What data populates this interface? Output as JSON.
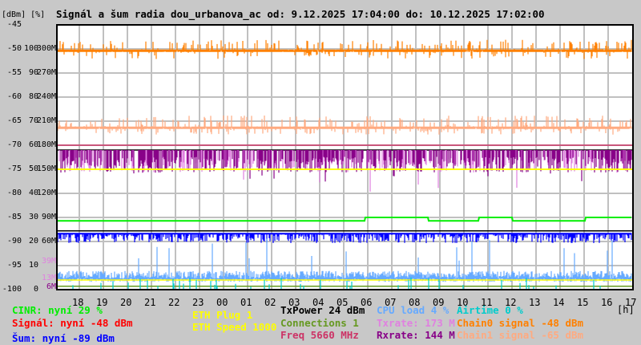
{
  "title": "Signál a šum radia dou_urbanova_ac od: 9.12.2025 17:04:00 do: 10.12.2025 17:02:00",
  "axis": {
    "units_label": "[dBm] [%]",
    "top_label": "-45",
    "x_unit": "[h]",
    "dbm_ticks": [
      "-50",
      "-55",
      "-60",
      "-65",
      "-70",
      "-75",
      "-80",
      "-85",
      "-90",
      "-95",
      "-100"
    ],
    "pct_ticks": [
      "100",
      "90",
      "80",
      "70",
      "60",
      "50",
      "40",
      "30",
      "20",
      "10",
      "0"
    ],
    "rate_ticks": [
      "300M",
      "270M",
      "240M",
      "210M",
      "180M",
      "150M",
      "120M",
      "90M",
      "60M"
    ],
    "extra_ticks": [
      {
        "text": "39M",
        "color": "#e080e0",
        "dbm": -94.2
      },
      {
        "text": "13M",
        "color": "#e080e0",
        "dbm": -98.2
      },
      {
        "text": "6M",
        "color": "#880088",
        "dbm": -99.3
      }
    ],
    "hours": [
      "18",
      "19",
      "20",
      "21",
      "22",
      "23",
      "00",
      "01",
      "02",
      "03",
      "04",
      "05",
      "06",
      "07",
      "08",
      "09",
      "10",
      "11",
      "12",
      "13",
      "14",
      "15",
      "16",
      "17"
    ]
  },
  "legend": [
    {
      "id": "cinr",
      "text": "CINR: nyní 29 %",
      "color": "#00ee00"
    },
    {
      "id": "signal",
      "text": "Signál: nyní -48 dBm",
      "color": "#ff0000"
    },
    {
      "id": "noise",
      "text": "Šum: nyní -89 dBm",
      "color": "#0000ff"
    },
    {
      "id": "eth-plug",
      "text": "ETH Plug 1",
      "color": "#ffff00"
    },
    {
      "id": "eth-speed",
      "text": "ETH Speed 1000",
      "color": "#ffff00"
    },
    {
      "id": "txpower",
      "text": "TxPower 24 dBm",
      "color": "#000000"
    },
    {
      "id": "connections",
      "text": "Connections 1",
      "color": "#669922"
    },
    {
      "id": "freq",
      "text": "Freq 5660 MHz",
      "color": "#cc3366"
    },
    {
      "id": "cpu",
      "text": "CPU load 4 %",
      "color": "#66aaff"
    },
    {
      "id": "txrate",
      "text": "Txrate: 173 M",
      "color": "#e080e0"
    },
    {
      "id": "rxrate",
      "text": "Rxrate: 144 M",
      "color": "#880088"
    },
    {
      "id": "airtime",
      "text": "Airtime 0 %",
      "color": "#00cccc"
    },
    {
      "id": "chain0",
      "text": "Chain0 signal -48 dBm",
      "color": "#ff8000"
    },
    {
      "id": "chain1",
      "text": "Chain1 signal -65 dBm",
      "color": "#ffaa80"
    }
  ],
  "chart_data": {
    "type": "line",
    "title": "Signál a šum radia dou_urbanova_ac od: 9.12.2025 17:04:00 do: 10.12.2025 17:02:00",
    "xlabel": "[h]",
    "ylabel": "[dBm] [%]",
    "ylim": [
      -100,
      -45
    ],
    "grid": true,
    "series": [
      {
        "name": "Chain0 signal",
        "color": "#ff8000",
        "base": -50.3,
        "up": 2.2,
        "down": 1.8,
        "style": "spiky"
      },
      {
        "name": "Chain1 signal",
        "color": "#ffaa80",
        "base": -66.3,
        "up": 2.5,
        "down": 1.5,
        "style": "spiky"
      },
      {
        "name": "Freq",
        "color": "#cc3366",
        "base": -70.0,
        "style": "flat"
      },
      {
        "name": "TxPower",
        "color": "#000000",
        "base": -71.0,
        "style": "flat"
      },
      {
        "name": "Txrate",
        "color": "#e080e0",
        "base": -71.0,
        "down": 4.7,
        "spike": 10,
        "style": "bars"
      },
      {
        "name": "Rxrate",
        "color": "#880088",
        "base": -71.0,
        "down": 4.7,
        "spike": 7,
        "style": "bars"
      },
      {
        "name": "ETH Speed",
        "color": "#ffff00",
        "base": -75.0,
        "style": "flat"
      },
      {
        "name": "CINR",
        "color": "#00ee00",
        "base": -85.7,
        "step": -85.0,
        "style": "step"
      },
      {
        "name": "Signal ref",
        "color": "#000000",
        "base": -87.8,
        "style": "flat"
      },
      {
        "name": "Noise",
        "color": "#0000ff",
        "base": -88.2,
        "down": 1.8,
        "style": "band"
      },
      {
        "name": "CPU load",
        "color": "#66aaff",
        "base": -97.7,
        "up": 1.6,
        "spike": 9,
        "style": "noise"
      },
      {
        "name": "ETH Plug",
        "color": "#ffff00",
        "base": -98.0,
        "style": "flat"
      },
      {
        "name": "Connections",
        "color": "#669922",
        "base": -99.3,
        "style": "flat"
      },
      {
        "name": "Airtime",
        "color": "#00cccc",
        "base": -100.0,
        "spike": 2,
        "style": "rare"
      }
    ]
  }
}
